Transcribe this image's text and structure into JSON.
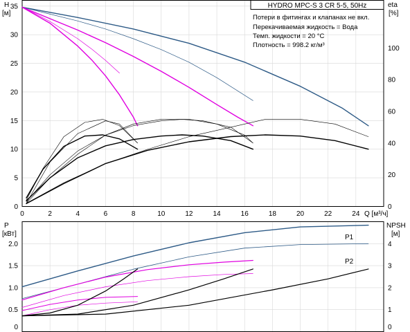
{
  "chart_data": [
    {
      "type": "line",
      "title": "HYDRO MPC-S 3 CR 5-5, 50Hz",
      "notes": [
        "Потери в фитингах и клапанах не вкл.",
        "Перекачиваемая жидкость = Вода",
        "Темп. жидкости = 20 °C",
        "Плотность = 998.2 кг/м³"
      ],
      "xlabel": "Q [м³/ч]",
      "ylabel": "H",
      "ylabel_unit": "[м]",
      "y2label": "eta",
      "y2label_unit": "[%]",
      "xlim": [
        0,
        26
      ],
      "ylim": [
        0,
        36
      ],
      "y2lim": [
        0,
        130
      ],
      "x_ticks": [
        0,
        2,
        4,
        6,
        8,
        10,
        12,
        14,
        16,
        18,
        20,
        22,
        24
      ],
      "y_ticks": [
        0,
        5,
        10,
        15,
        20,
        25,
        30,
        35
      ],
      "y2_ticks": [
        0,
        20,
        40,
        60,
        80,
        100
      ],
      "grid": true,
      "series": [
        {
          "kind": "head",
          "color": "#2d5a86",
          "width": 1.4,
          "x": [
            0,
            4,
            8,
            12,
            16,
            20,
            23,
            24.9
          ],
          "y": [
            34.8,
            33.0,
            31.0,
            28.5,
            25.2,
            21.0,
            17.2,
            14.1
          ]
        },
        {
          "kind": "head",
          "color": "#2d5a86",
          "width": 0.7,
          "x": [
            0,
            2,
            4,
            6,
            8,
            10,
            12,
            14,
            16.6
          ],
          "y": [
            34.8,
            33.6,
            32.4,
            31.0,
            29.3,
            27.4,
            25.2,
            22.5,
            18.5
          ]
        },
        {
          "kind": "head",
          "color": "#e000e0",
          "width": 1.4,
          "x": [
            0,
            2,
            4,
            6,
            8,
            10,
            12,
            14,
            15.5,
            16.6
          ],
          "y": [
            34.8,
            32.8,
            30.8,
            28.6,
            26.2,
            23.6,
            20.8,
            17.8,
            15.6,
            14.1
          ]
        },
        {
          "kind": "head",
          "color": "#e000e0",
          "width": 0.7,
          "x": [
            0,
            1,
            2,
            3,
            4,
            5,
            6,
            7
          ],
          "y": [
            34.8,
            33.6,
            32.3,
            30.8,
            29.3,
            27.5,
            25.5,
            23.3
          ]
        },
        {
          "kind": "head",
          "color": "#e000e0",
          "width": 1.4,
          "x": [
            0,
            2,
            4,
            5,
            6,
            7,
            8,
            8.3
          ],
          "y": [
            34.8,
            32.0,
            28.0,
            25.6,
            22.8,
            19.5,
            15.6,
            14.1
          ]
        },
        {
          "kind": "eta",
          "color": "#000000",
          "width": 0.6,
          "x": [
            0.3,
            1.5,
            3,
            4.5,
            5.8,
            7,
            8.3
          ],
          "y": [
            4,
            24,
            44,
            53,
            55,
            51,
            40
          ]
        },
        {
          "kind": "eta",
          "color": "#000000",
          "width": 0.6,
          "x": [
            0.3,
            2,
            4,
            6,
            8,
            10,
            11.5,
            13,
            15,
            16.6
          ],
          "y": [
            3,
            20,
            35,
            45,
            51,
            54,
            55,
            54,
            50,
            40
          ]
        },
        {
          "kind": "eta",
          "color": "#000000",
          "width": 0.6,
          "x": [
            0.3,
            3,
            6,
            9,
            12,
            15,
            17.5,
            20,
            22.5,
            24.9
          ],
          "y": [
            2,
            15,
            27,
            36,
            44,
            50,
            55,
            55,
            52,
            44
          ]
        },
        {
          "kind": "eta",
          "color": "#000000",
          "width": 0.6,
          "x": [
            0.3,
            2,
            4,
            6,
            8,
            10,
            12,
            14,
            16,
            16.6
          ],
          "y": [
            2,
            18,
            33,
            45,
            52,
            55,
            55,
            52,
            45,
            40
          ]
        },
        {
          "kind": "eta",
          "color": "#000000",
          "width": 0.6,
          "x": [
            0.3,
            2,
            4,
            6,
            7,
            8.3
          ],
          "y": [
            2,
            28,
            46,
            54,
            52,
            40
          ]
        },
        {
          "kind": "pump",
          "color": "#000000",
          "width": 1.4,
          "x": [
            0.3,
            1.5,
            3,
            4.5,
            5.8,
            7,
            8.3
          ],
          "y": [
            1.5,
            6.5,
            10.5,
            12.3,
            12.5,
            11.8,
            10.0
          ]
        },
        {
          "kind": "pump",
          "color": "#000000",
          "width": 1.4,
          "x": [
            0.3,
            2,
            4,
            6,
            8,
            10,
            11.5,
            13,
            15,
            16.6
          ],
          "y": [
            1.0,
            5.0,
            8.5,
            10.6,
            11.7,
            12.3,
            12.5,
            12.3,
            11.5,
            10.0
          ]
        },
        {
          "kind": "pump",
          "color": "#000000",
          "width": 1.4,
          "x": [
            0.3,
            3,
            6,
            9,
            12,
            15,
            17.5,
            20,
            22.5,
            24.9
          ],
          "y": [
            0.5,
            4.0,
            7.5,
            9.8,
            11.3,
            12.2,
            12.5,
            12.3,
            11.5,
            10.0
          ]
        }
      ]
    },
    {
      "type": "line",
      "xlabel": "",
      "ylabel": "P",
      "ylabel_unit": "[кВт]",
      "y2label": "NPSH",
      "y2label_unit": "[м]",
      "xlim": [
        0,
        26
      ],
      "ylim": [
        0,
        2.5
      ],
      "y2lim": [
        0,
        5
      ],
      "y_ticks": [
        0,
        0.5,
        1.0,
        1.5,
        2.0
      ],
      "y_tick_labels": [
        "0",
        "0.5",
        "1.0",
        "1.5",
        "2.0"
      ],
      "y2_ticks": [
        0,
        1,
        2,
        3,
        4
      ],
      "grid": true,
      "series": [
        {
          "name": "P1",
          "kind": "power",
          "color": "#2d5a86",
          "width": 1.4,
          "x": [
            0,
            4,
            8,
            12,
            16,
            20,
            24.9
          ],
          "y": [
            1.02,
            1.38,
            1.72,
            2.02,
            2.25,
            2.38,
            2.42
          ]
        },
        {
          "name": "P2",
          "kind": "power",
          "color": "#2d5a86",
          "width": 0.8,
          "x": [
            0,
            4,
            8,
            12,
            16,
            20,
            24.9
          ],
          "y": [
            0.75,
            1.08,
            1.42,
            1.7,
            1.9,
            1.98,
            2.0
          ]
        },
        {
          "kind": "power",
          "color": "#e000e0",
          "width": 1.2,
          "x": [
            0,
            3,
            6,
            9,
            12,
            14.5,
            16.6
          ],
          "y": [
            0.72,
            1.0,
            1.24,
            1.41,
            1.52,
            1.58,
            1.62
          ]
        },
        {
          "kind": "power",
          "color": "#e000e0",
          "width": 0.7,
          "x": [
            0,
            3,
            6,
            9,
            12,
            14.5,
            16.6
          ],
          "y": [
            0.55,
            0.82,
            1.02,
            1.16,
            1.25,
            1.3,
            1.32
          ]
        },
        {
          "kind": "power",
          "color": "#e000e0",
          "width": 1.0,
          "x": [
            0,
            2,
            4,
            6,
            8.3
          ],
          "y": [
            0.48,
            0.62,
            0.72,
            0.78,
            0.8
          ]
        },
        {
          "kind": "power",
          "color": "#e000e0",
          "width": 0.7,
          "x": [
            0,
            2,
            4,
            6,
            8.3
          ],
          "y": [
            0.36,
            0.5,
            0.6,
            0.65,
            0.68
          ]
        },
        {
          "kind": "npsh",
          "color": "#000000",
          "width": 1.2,
          "x": [
            0,
            2,
            4,
            6,
            7.3,
            8.3
          ],
          "y": [
            0.72,
            0.85,
            1.2,
            1.85,
            2.4,
            2.85
          ]
        },
        {
          "kind": "npsh",
          "color": "#000000",
          "width": 1.2,
          "x": [
            0,
            4,
            8,
            12,
            14.5,
            16.6
          ],
          "y": [
            0.72,
            0.8,
            1.2,
            1.9,
            2.4,
            2.85
          ]
        },
        {
          "kind": "npsh",
          "color": "#000000",
          "width": 1.2,
          "x": [
            0,
            6,
            12,
            18,
            22,
            24.9
          ],
          "y": [
            0.72,
            0.8,
            1.2,
            1.9,
            2.4,
            2.85
          ]
        }
      ]
    }
  ]
}
